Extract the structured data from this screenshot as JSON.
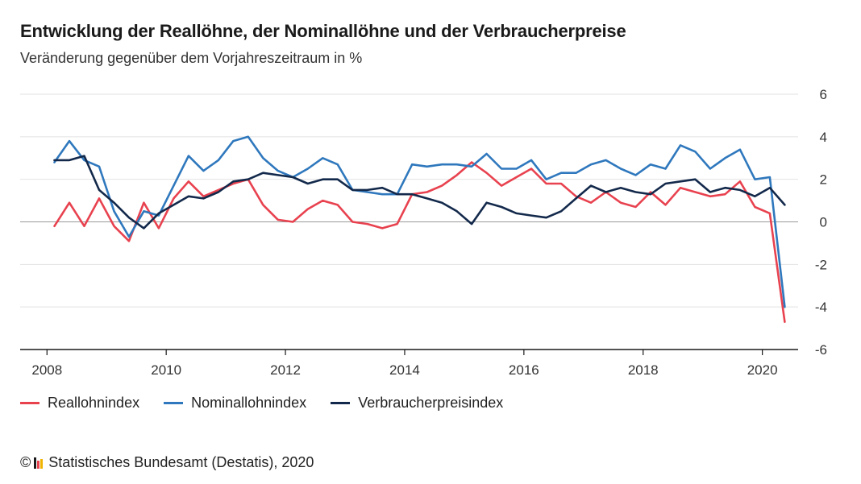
{
  "header": {
    "title": "Entwicklung der Reallöhne, der Nominallöhne und der Verbraucherpreise",
    "subtitle": "Veränderung gegenüber dem Vorjahreszeitraum in %"
  },
  "footer": {
    "copyright_symbol": "©",
    "source": "Statistisches Bundesamt (Destatis), 2020",
    "logo_icon": "destatis-logo-icon"
  },
  "chart_data": {
    "type": "line",
    "xlim": [
      2007.55,
      2020.6
    ],
    "ylim": [
      -6,
      6
    ],
    "x_ticks": [
      2008,
      2010,
      2012,
      2014,
      2016,
      2018,
      2020
    ],
    "x_tick_labels": [
      "2008",
      "2010",
      "2012",
      "2014",
      "2016",
      "2018",
      "2020"
    ],
    "y_ticks": [
      6,
      4,
      2,
      0,
      -2,
      -4,
      -6
    ],
    "y_tick_labels": [
      "6",
      "4",
      "2",
      "0",
      "-2",
      "-4",
      "-6"
    ],
    "y_axis_side": "right",
    "grid": "horizontal",
    "legend_position": "bottom-left",
    "x": [
      2008.125,
      2008.375,
      2008.625,
      2008.875,
      2009.125,
      2009.375,
      2009.625,
      2009.875,
      2010.125,
      2010.375,
      2010.625,
      2010.875,
      2011.125,
      2011.375,
      2011.625,
      2011.875,
      2012.125,
      2012.375,
      2012.625,
      2012.875,
      2013.125,
      2013.375,
      2013.625,
      2013.875,
      2014.125,
      2014.375,
      2014.625,
      2014.875,
      2015.125,
      2015.375,
      2015.625,
      2015.875,
      2016.125,
      2016.375,
      2016.625,
      2016.875,
      2017.125,
      2017.375,
      2017.625,
      2017.875,
      2018.125,
      2018.375,
      2018.625,
      2018.875,
      2019.125,
      2019.375,
      2019.625,
      2019.875,
      2020.125,
      2020.375
    ],
    "series": [
      {
        "name": "Reallohnindex",
        "color": "#e8424f",
        "values": [
          -0.2,
          0.9,
          -0.2,
          1.1,
          -0.2,
          -0.9,
          0.9,
          -0.3,
          1.1,
          1.9,
          1.2,
          1.5,
          1.8,
          2.0,
          0.8,
          0.1,
          0.0,
          0.6,
          1.0,
          0.8,
          0.0,
          -0.1,
          -0.3,
          -0.1,
          1.3,
          1.4,
          1.7,
          2.2,
          2.8,
          2.3,
          1.7,
          2.1,
          2.5,
          1.8,
          1.8,
          1.2,
          0.9,
          1.4,
          0.9,
          0.7,
          1.4,
          0.8,
          1.6,
          1.4,
          1.2,
          1.3,
          1.9,
          0.7,
          0.4,
          -4.7
        ]
      },
      {
        "name": "Nominallohnindex",
        "color": "#2f78bd",
        "values": [
          2.8,
          3.8,
          2.9,
          2.6,
          0.5,
          -0.7,
          0.5,
          0.3,
          1.7,
          3.1,
          2.4,
          2.9,
          3.8,
          4.0,
          3.0,
          2.4,
          2.1,
          2.5,
          3.0,
          2.7,
          1.5,
          1.4,
          1.3,
          1.3,
          2.7,
          2.6,
          2.7,
          2.7,
          2.6,
          3.2,
          2.5,
          2.5,
          2.9,
          2.0,
          2.3,
          2.3,
          2.7,
          2.9,
          2.5,
          2.2,
          2.7,
          2.5,
          3.6,
          3.3,
          2.5,
          3.0,
          3.4,
          2.0,
          2.1,
          -4.0
        ]
      },
      {
        "name": "Verbraucherpreisindex",
        "color": "#13294b",
        "values": [
          2.9,
          2.9,
          3.1,
          1.5,
          0.9,
          0.2,
          -0.3,
          0.4,
          0.8,
          1.2,
          1.1,
          1.4,
          1.9,
          2.0,
          2.3,
          2.2,
          2.1,
          1.8,
          2.0,
          2.0,
          1.5,
          1.5,
          1.6,
          1.3,
          1.3,
          1.1,
          0.9,
          0.5,
          -0.1,
          0.9,
          0.7,
          0.4,
          0.3,
          0.2,
          0.5,
          1.1,
          1.7,
          1.4,
          1.6,
          1.4,
          1.3,
          1.8,
          1.9,
          2.0,
          1.4,
          1.6,
          1.5,
          1.2,
          1.6,
          0.8
        ]
      }
    ]
  }
}
